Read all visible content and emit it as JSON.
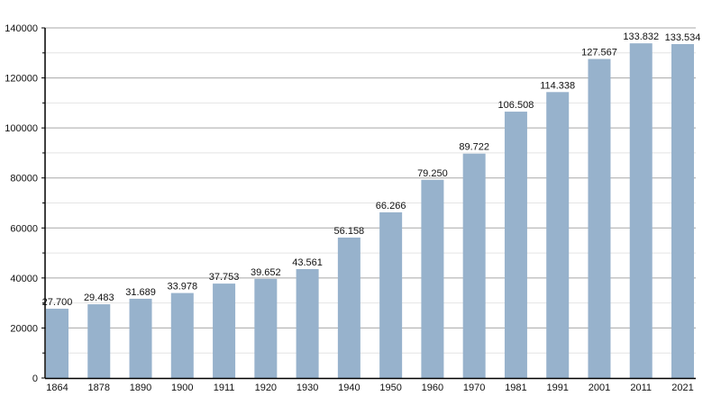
{
  "chart_data": {
    "type": "bar",
    "title": "",
    "xlabel": "",
    "ylabel": "",
    "categories": [
      "1864",
      "1878",
      "1890",
      "1900",
      "1911",
      "1920",
      "1930",
      "1940",
      "1950",
      "1960",
      "1970",
      "1981",
      "1991",
      "2001",
      "2011",
      "2021"
    ],
    "values": [
      27700,
      29483,
      31689,
      33978,
      37753,
      39652,
      43561,
      56158,
      66266,
      79250,
      89722,
      106508,
      114338,
      127567,
      133832,
      133534
    ],
    "value_labels": [
      "27.700",
      "29.483",
      "31.689",
      "33.978",
      "37.753",
      "39.652",
      "43.561",
      "56.158",
      "66.266",
      "79.250",
      "89.722",
      "106.508",
      "114.338",
      "127.567",
      "133.832",
      "133.534"
    ],
    "ylim": [
      0,
      140000
    ],
    "yticks": [
      "0",
      "20000",
      "40000",
      "60000",
      "80000",
      "100000",
      "120000",
      "140000"
    ],
    "ytick_values": [
      0,
      20000,
      40000,
      60000,
      80000,
      100000,
      120000,
      140000
    ],
    "minor_grid_step": 10000,
    "grid": true,
    "legend": "none",
    "colors": {
      "bar": "#97b2cc",
      "major_grid": "#a8a8a8",
      "minor_grid": "#e4e4e4",
      "axis": "#000000"
    }
  }
}
